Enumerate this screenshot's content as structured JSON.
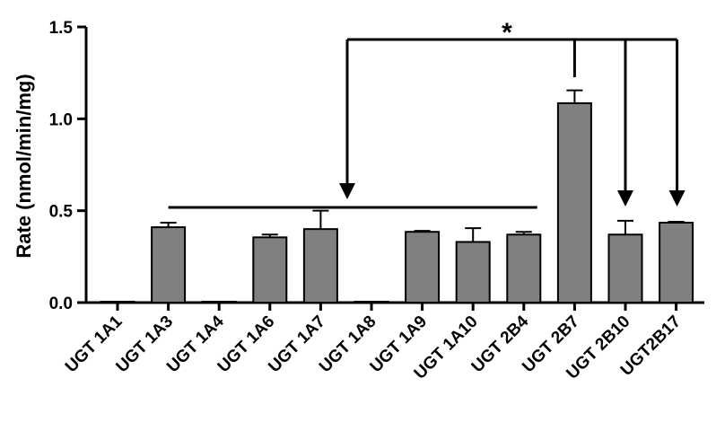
{
  "chart_data": {
    "type": "bar",
    "title": "",
    "xlabel": "",
    "ylabel": "Rate (nmol/min/mg)",
    "ylim": [
      0,
      1.5
    ],
    "yticks": [
      "0.0",
      "0.5",
      "1.0",
      "1.5"
    ],
    "grid": false,
    "bar_color": "#808080",
    "categories": [
      "UGT 1A1",
      "UGT 1A3",
      "UGT 1A4",
      "UGT 1A6",
      "UGT 1A7",
      "UGT 1A8",
      "UGT 1A9",
      "UGT 1A10",
      "UGT 2B4",
      "UGT 2B7",
      "UGT 2B10",
      "UGT2B17"
    ],
    "values": [
      0.005,
      0.41,
      0.005,
      0.355,
      0.4,
      0.005,
      0.385,
      0.33,
      0.37,
      1.085,
      0.37,
      0.435
    ],
    "errors": [
      0.0,
      0.025,
      0.0,
      0.015,
      0.1,
      0.0,
      0.005,
      0.075,
      0.015,
      0.07,
      0.075,
      0.005
    ],
    "annotation": "*"
  }
}
